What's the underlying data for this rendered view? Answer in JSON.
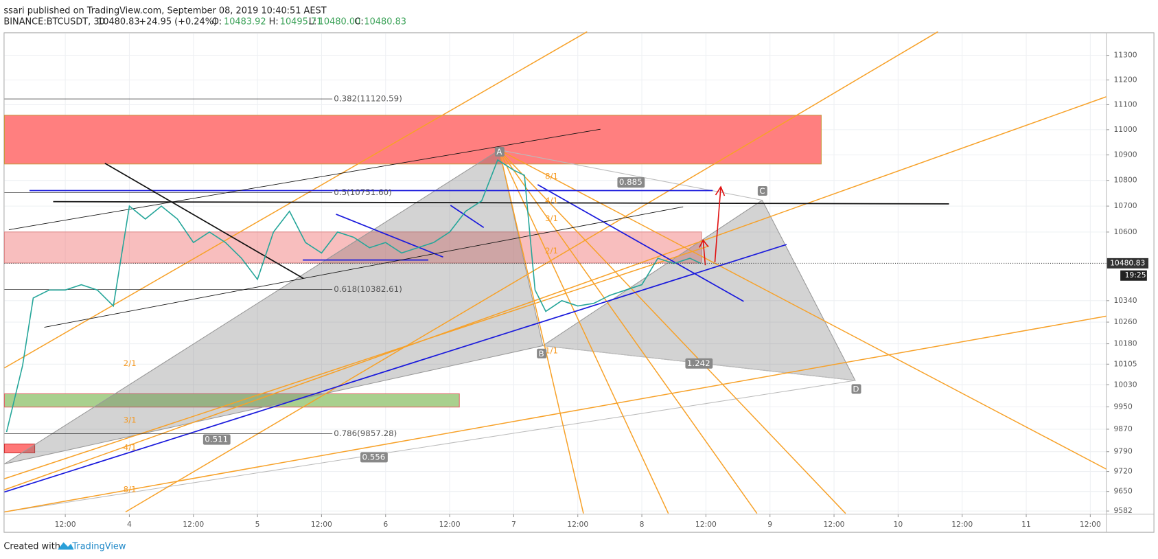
{
  "header": {
    "publisher": "ssari published on TradingView.com, September 08, 2019 10:40:51 AEST",
    "symbol": "BINANCE:BTCUSDT, 30",
    "last": "10480.83",
    "change": "+24.95 (+0.24%)",
    "ohlc": [
      {
        "label": "O:",
        "value": "10483.92"
      },
      {
        "label": "H:",
        "value": "10495.71"
      },
      {
        "label": "L:",
        "value": "10480.00"
      },
      {
        "label": "C:",
        "value": "10480.83"
      }
    ]
  },
  "chart_data": {
    "type": "line",
    "color": "#26a69a",
    "log_scale": true,
    "grid": true,
    "x": [
      -23,
      -20,
      -18,
      -15,
      -12,
      -9,
      -6,
      -3,
      0,
      3,
      6,
      9,
      12,
      15,
      18,
      21,
      24,
      27,
      30,
      33,
      36,
      39,
      42,
      45,
      48,
      51,
      54,
      57,
      60,
      63,
      66,
      69,
      72,
      74,
      76,
      78,
      81,
      84,
      87,
      90,
      93,
      96,
      99,
      102,
      105,
      107
    ],
    "values": [
      9860,
      10100,
      10350,
      10380,
      10380,
      10400,
      10380,
      10320,
      10700,
      10650,
      10700,
      10650,
      10560,
      10600,
      10560,
      10500,
      10420,
      10600,
      10680,
      10560,
      10520,
      10600,
      10580,
      10540,
      10560,
      10520,
      10540,
      10560,
      10600,
      10680,
      10720,
      10880,
      10840,
      10820,
      10380,
      10300,
      10340,
      10320,
      10330,
      10360,
      10380,
      10400,
      10500,
      10480,
      10500,
      10480.83
    ],
    "xlim": [
      -23.4,
      183
    ],
    "xticks": [
      {
        "value": -12,
        "label": "12:00"
      },
      {
        "value": 0,
        "label": "4"
      },
      {
        "value": 12,
        "label": "12:00"
      },
      {
        "value": 24,
        "label": "5"
      },
      {
        "value": 36,
        "label": "12:00"
      },
      {
        "value": 48,
        "label": "6"
      },
      {
        "value": 60,
        "label": "12:00"
      },
      {
        "value": 72,
        "label": "7"
      },
      {
        "value": 84,
        "label": "12:00"
      },
      {
        "value": 96,
        "label": "8"
      },
      {
        "value": 108,
        "label": "12:00"
      },
      {
        "value": 120,
        "label": "9"
      },
      {
        "value": 132,
        "label": "12:00"
      },
      {
        "value": 144,
        "label": "10"
      },
      {
        "value": 156,
        "label": "12:00"
      },
      {
        "value": 168,
        "label": "11"
      },
      {
        "value": 180,
        "label": "12:00"
      }
    ],
    "ylim": [
      9571,
      11391
    ],
    "yticks": [
      11300,
      11200,
      11100,
      11000,
      10900,
      10800,
      10700,
      10600,
      10340,
      10260,
      10180,
      10105,
      10030,
      9950,
      9870,
      9790,
      9720,
      9650,
      9582
    ],
    "last_price": 10480.83,
    "countdown": "19:25",
    "annotations": {
      "fib": [
        "0.382(11120.59)",
        "0.5(10751.60)",
        "0.618(10382.61)",
        "0.786(9857.28)"
      ],
      "points": [
        "A",
        "B",
        "C",
        "D"
      ],
      "ratios": [
        "0.885",
        "1.242",
        "0.511",
        "0.556"
      ],
      "fan": [
        "8/1",
        "4/1",
        "3/1",
        "2/1",
        "1/1",
        "2/1",
        "3/1",
        "4/1",
        "8/1"
      ]
    }
  },
  "footer": {
    "created_with": "Created with",
    "brand": "TradingView"
  }
}
